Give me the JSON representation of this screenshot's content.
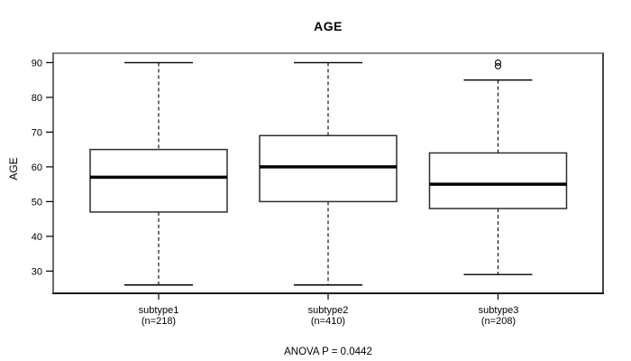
{
  "figure": {
    "title": "AGE",
    "y_axis_label": "AGE",
    "annotation": "ANOVA P = 0.0442"
  },
  "chart_data": {
    "type": "boxplot",
    "title": "AGE",
    "xlabel": "",
    "ylabel": "AGE",
    "ylim": [
      23.6,
      92.7
    ],
    "yticks": [
      30,
      40,
      50,
      60,
      70,
      80,
      90
    ],
    "grid": false,
    "legend": "none",
    "annotation": "ANOVA P = 0.0442",
    "groups": [
      {
        "label": "subtype1",
        "sublabel": "(n=218)",
        "n": 218,
        "whisker_low": 26,
        "q1": 47,
        "median": 57,
        "q3": 65,
        "whisker_high": 90,
        "outliers": []
      },
      {
        "label": "subtype2",
        "sublabel": "(n=410)",
        "n": 410,
        "whisker_low": 26,
        "q1": 50,
        "median": 60,
        "q3": 69,
        "whisker_high": 90,
        "outliers": []
      },
      {
        "label": "subtype3",
        "sublabel": "(n=208)",
        "n": 208,
        "whisker_low": 29,
        "q1": 48,
        "median": 55,
        "q3": 64,
        "whisker_high": 85,
        "outliers": [
          89,
          90
        ]
      }
    ],
    "colors": {
      "line": "#000000",
      "box_fill": "#ffffff",
      "frame": "#444444",
      "background": "#ffffff"
    }
  }
}
